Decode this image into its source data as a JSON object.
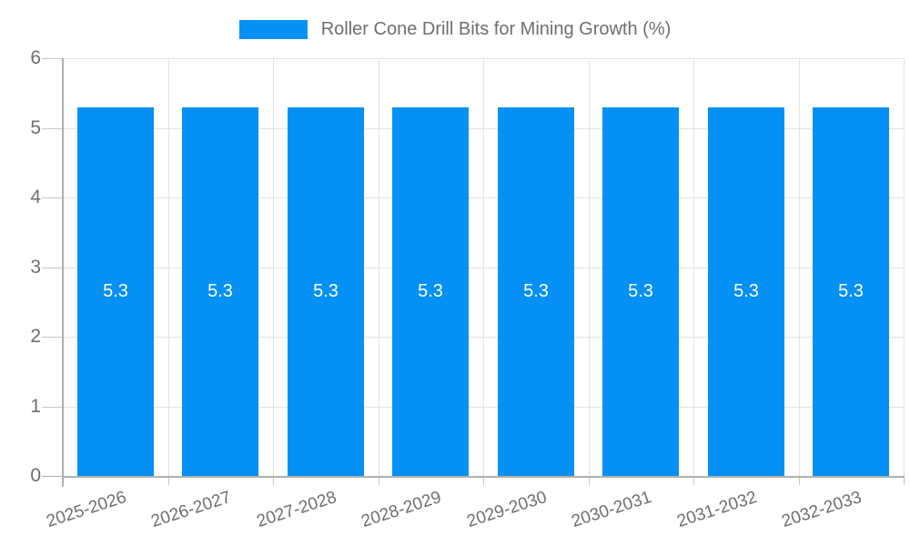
{
  "chart_data": {
    "type": "bar",
    "title": "Roller Cone Drill Bits for Mining Growth (%)",
    "categories": [
      "2025-2026",
      "2026-2027",
      "2027-2028",
      "2028-2029",
      "2029-2030",
      "2030-2031",
      "2031-2032",
      "2032-2033"
    ],
    "values": [
      5.3,
      5.3,
      5.3,
      5.3,
      5.3,
      5.3,
      5.3,
      5.3
    ],
    "bar_value_labels": [
      "5.3",
      "5.3",
      "5.3",
      "5.3",
      "5.3",
      "5.3",
      "5.3",
      "5.3"
    ],
    "xlabel": "",
    "ylabel": "",
    "ylim": [
      0,
      6
    ],
    "yticks": [
      0,
      1,
      2,
      3,
      4,
      5,
      6
    ],
    "grid": true,
    "legend_position": "top"
  },
  "colors": {
    "bar": "#0590f5",
    "bar_label_text": "#ffffff",
    "grid_line": "#e2e2e2",
    "tick_line": "#c6c6c6",
    "axis_line": "#b0b0b0",
    "label_text": "#6e6f72",
    "background": "#ffffff"
  }
}
